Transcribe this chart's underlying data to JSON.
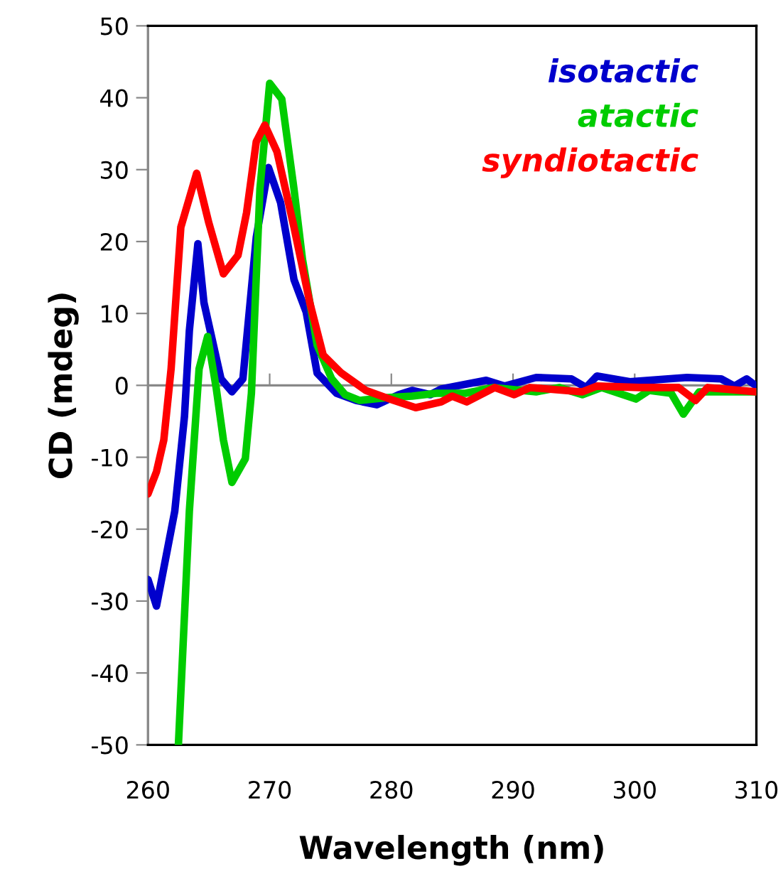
{
  "chart_data": {
    "type": "line",
    "xlabel": "Wavelength (nm)",
    "ylabel": "CD (mdeg)",
    "xlim": [
      260,
      310
    ],
    "ylim": [
      -50,
      50
    ],
    "xticks": [
      260,
      270,
      280,
      290,
      300,
      310
    ],
    "yticks": [
      -50,
      -40,
      -30,
      -20,
      -10,
      0,
      10,
      20,
      30,
      40,
      50
    ],
    "grid": false,
    "ref_lines": [
      {
        "axis": "y",
        "value": 0,
        "color": "#888888"
      }
    ],
    "legend": "top right",
    "marker": "none",
    "line_style": "solid",
    "series": [
      {
        "name": "isotactic",
        "color": "#0000cc",
        "x": [
          260,
          260.7,
          262.2,
          263.0,
          263.4,
          264.1,
          264.6,
          266.0,
          266.9,
          267.8,
          268.9,
          269.9,
          270.9,
          272.0,
          273.0,
          273.9,
          275.5,
          277.1,
          278.8,
          280.6,
          281.7,
          283.2,
          284.1,
          287.8,
          289.3,
          291.9,
          294.8,
          296.0,
          296.9,
          299.6,
          304.3,
          307.1,
          308.2,
          309.2,
          310
        ],
        "values": [
          -27,
          -30.7,
          -17.5,
          -4.3,
          7.6,
          19.7,
          11.5,
          0.9,
          -0.9,
          0.9,
          20.6,
          30.3,
          25.4,
          14.7,
          10.2,
          1.7,
          -1.1,
          -2.1,
          -2.7,
          -1.3,
          -0.7,
          -1.3,
          -0.5,
          0.7,
          -0.1,
          1.1,
          0.9,
          -0.3,
          1.3,
          0.5,
          1.1,
          0.9,
          -0.1,
          0.9,
          -0.1
        ]
      },
      {
        "name": "atactic",
        "color": "#00cc00",
        "x": [
          262.5,
          263.4,
          264.2,
          264.9,
          265.6,
          266.2,
          266.9,
          268.0,
          268.5,
          269.2,
          270.0,
          271.0,
          272.0,
          272.7,
          273.9,
          275.1,
          276.2,
          277.4,
          279.7,
          281.7,
          283.7,
          286.1,
          288.4,
          291.9,
          293.8,
          295.7,
          297.3,
          300.1,
          301.2,
          303.0,
          304.0,
          305.3,
          310
        ],
        "values": [
          -50,
          -17.5,
          2.3,
          6.8,
          -0.3,
          -7.6,
          -13.5,
          -10.2,
          -1.1,
          27.3,
          42.0,
          39.8,
          27.3,
          17.5,
          5.6,
          0.9,
          -1.3,
          -2.1,
          -1.7,
          -1.5,
          -1.1,
          -1.1,
          -0.3,
          -0.9,
          -0.3,
          -1.3,
          -0.3,
          -1.9,
          -0.7,
          -1.1,
          -4.0,
          -0.9,
          -0.9
        ]
      },
      {
        "name": "syndiotactic",
        "color": "#ff0000",
        "x": [
          260,
          260.7,
          261.3,
          261.9,
          262.7,
          264.0,
          265.0,
          266.2,
          267.4,
          268.1,
          268.9,
          269.6,
          270.6,
          272.0,
          273.3,
          274.4,
          275.9,
          277.9,
          280.2,
          282.0,
          284.1,
          285.0,
          286.2,
          288.5,
          290.1,
          291.4,
          295.7,
          296.9,
          300.4,
          303.6,
          305.0,
          306.0,
          310
        ],
        "values": [
          -15.1,
          -12.0,
          -7.6,
          2.3,
          22.0,
          29.5,
          22.6,
          15.5,
          18.1,
          24.0,
          33.9,
          36.2,
          32.5,
          22.0,
          11.5,
          4.2,
          1.7,
          -0.7,
          -2.1,
          -3.1,
          -2.3,
          -1.5,
          -2.3,
          -0.3,
          -1.3,
          -0.3,
          -0.9,
          -0.1,
          -0.3,
          -0.3,
          -2.1,
          -0.3,
          -0.9
        ]
      }
    ]
  }
}
